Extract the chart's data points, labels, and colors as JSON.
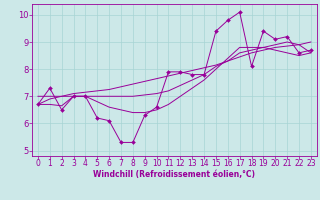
{
  "x": [
    0,
    1,
    2,
    3,
    4,
    5,
    6,
    7,
    8,
    9,
    10,
    11,
    12,
    13,
    14,
    15,
    16,
    17,
    18,
    19,
    20,
    21,
    22,
    23
  ],
  "y_main": [
    6.7,
    7.3,
    6.5,
    7.0,
    7.0,
    6.2,
    6.1,
    5.3,
    5.3,
    6.3,
    6.6,
    7.9,
    7.9,
    7.8,
    7.8,
    9.4,
    9.8,
    10.1,
    8.1,
    9.4,
    9.1,
    9.2,
    8.6,
    8.7
  ],
  "y_line1": [
    6.7,
    6.9,
    7.0,
    7.1,
    7.15,
    7.2,
    7.25,
    7.35,
    7.45,
    7.55,
    7.65,
    7.75,
    7.85,
    7.95,
    8.05,
    8.15,
    8.3,
    8.45,
    8.6,
    8.7,
    8.8,
    8.85,
    8.9,
    9.0
  ],
  "y_line2": [
    7.0,
    7.0,
    7.0,
    7.0,
    7.0,
    7.0,
    7.0,
    7.0,
    7.0,
    7.05,
    7.1,
    7.2,
    7.4,
    7.6,
    7.8,
    8.1,
    8.3,
    8.6,
    8.7,
    8.8,
    8.9,
    9.0,
    8.9,
    8.6
  ],
  "y_line3": [
    6.7,
    6.7,
    6.65,
    7.0,
    7.0,
    6.8,
    6.6,
    6.5,
    6.4,
    6.4,
    6.5,
    6.7,
    7.0,
    7.3,
    7.6,
    8.0,
    8.4,
    8.8,
    8.8,
    8.8,
    8.7,
    8.6,
    8.5,
    8.6
  ],
  "line_color": "#990099",
  "bg_color": "#cce8e8",
  "grid_color": "#a8d4d4",
  "xlabel": "Windchill (Refroidissement éolien,°C)",
  "xlim": [
    -0.5,
    23.5
  ],
  "ylim": [
    4.8,
    10.4
  ],
  "yticks": [
    5,
    6,
    7,
    8,
    9,
    10
  ],
  "xticks": [
    0,
    1,
    2,
    3,
    4,
    5,
    6,
    7,
    8,
    9,
    10,
    11,
    12,
    13,
    14,
    15,
    16,
    17,
    18,
    19,
    20,
    21,
    22,
    23
  ],
  "tick_fontsize": 5.5,
  "xlabel_fontsize": 5.5,
  "lw": 0.7,
  "ms": 2.0
}
